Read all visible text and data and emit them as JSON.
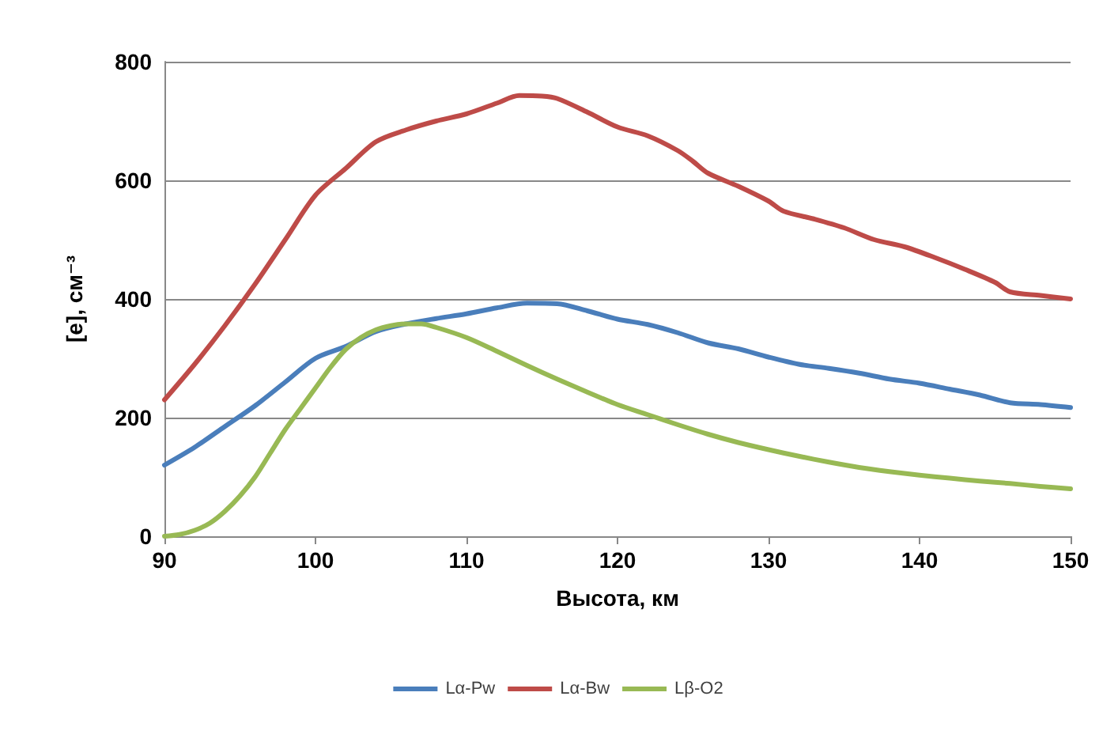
{
  "chart_data": {
    "type": "line",
    "xlabel": "Высота, км",
    "ylabel": "[e], см⁻³",
    "xlim": [
      90,
      150
    ],
    "xticks": [
      90,
      100,
      110,
      120,
      130,
      140,
      150
    ],
    "ylim": [
      0,
      800
    ],
    "yticks": [
      0,
      200,
      400,
      600,
      800
    ],
    "grid": "y",
    "legend": "bottom",
    "marker": "none",
    "line_style": "solid",
    "series": [
      {
        "name": "Lα-Pw",
        "color": "#4a7ebb",
        "x": [
          90,
          92,
          94,
          96,
          98,
          100,
          102,
          104,
          106,
          108,
          110,
          112,
          114,
          116,
          118,
          120,
          122,
          124,
          126,
          128,
          130,
          132,
          134,
          136,
          138,
          140,
          142,
          144,
          146,
          148,
          150
        ],
        "values": [
          120,
          150,
          185,
          220,
          260,
          300,
          320,
          345,
          358,
          367,
          375,
          385,
          393,
          392,
          380,
          366,
          357,
          343,
          326,
          316,
          302,
          290,
          283,
          275,
          265,
          258,
          248,
          238,
          225,
          222,
          217
        ]
      },
      {
        "name": "Lα-Bw",
        "color": "#be4b48",
        "x": [
          90,
          92,
          94,
          96,
          98,
          100,
          102,
          104,
          106,
          108,
          110,
          112,
          113.5,
          115,
          116,
          118,
          120,
          122,
          124,
          125,
          126,
          128,
          130,
          131,
          133,
          135,
          137,
          139,
          141,
          143,
          145,
          146,
          148,
          150
        ],
        "values": [
          230,
          290,
          355,
          425,
          500,
          575,
          620,
          665,
          685,
          700,
          712,
          730,
          743,
          742,
          738,
          715,
          690,
          675,
          650,
          632,
          612,
          590,
          565,
          548,
          535,
          520,
          500,
          488,
          470,
          450,
          428,
          412,
          406,
          400
        ]
      },
      {
        "name": "Lβ-O2",
        "color": "#98b954",
        "x": [
          90,
          91,
          92,
          93,
          94,
          95,
          96,
          97,
          98,
          99,
          100,
          101,
          102,
          103,
          104,
          105,
          106,
          107,
          108,
          110,
          112,
          114,
          116,
          118,
          120,
          122,
          124,
          126,
          128,
          130,
          132,
          134,
          136,
          138,
          140,
          142,
          144,
          146,
          148,
          150
        ],
        "values": [
          0,
          3,
          10,
          22,
          42,
          68,
          100,
          140,
          180,
          215,
          250,
          285,
          315,
          335,
          348,
          355,
          358,
          358,
          352,
          335,
          312,
          288,
          265,
          243,
          222,
          205,
          188,
          172,
          158,
          146,
          135,
          125,
          116,
          109,
          103,
          98,
          93,
          89,
          84,
          80
        ]
      }
    ]
  }
}
